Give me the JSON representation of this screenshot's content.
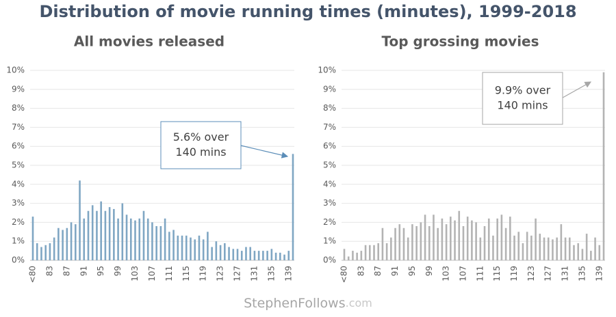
{
  "title": "Distribution of movie running times (minutes), 1999-2018",
  "watermark": {
    "name": "StephenFollows",
    "domain": ".com"
  },
  "chart_data": [
    {
      "type": "bar",
      "title": "All movies released",
      "color": "#7fa6c3",
      "categories": [
        "<80",
        null,
        null,
        null,
        "83",
        null,
        null,
        null,
        "87",
        null,
        null,
        null,
        "91",
        null,
        null,
        null,
        "95",
        null,
        null,
        null,
        "99",
        null,
        null,
        null,
        "103",
        null,
        null,
        null,
        "107",
        null,
        null,
        null,
        "111",
        null,
        null,
        null,
        "115",
        null,
        null,
        null,
        "119",
        null,
        null,
        null,
        "123",
        null,
        null,
        null,
        "127",
        null,
        null,
        null,
        "131",
        null,
        null,
        null,
        "135",
        null,
        null,
        null,
        "139",
        null
      ],
      "values": [
        2.3,
        0.9,
        0.7,
        0.8,
        0.9,
        1.2,
        1.7,
        1.6,
        1.7,
        2.0,
        1.9,
        4.2,
        2.2,
        2.6,
        2.9,
        2.6,
        3.1,
        2.6,
        2.8,
        2.7,
        2.2,
        3.0,
        2.4,
        2.2,
        2.1,
        2.2,
        2.6,
        2.2,
        2.0,
        1.8,
        1.8,
        2.2,
        1.5,
        1.6,
        1.3,
        1.3,
        1.3,
        1.2,
        1.1,
        1.3,
        1.1,
        1.5,
        0.7,
        1.0,
        0.8,
        0.9,
        0.7,
        0.6,
        0.6,
        0.5,
        0.7,
        0.7,
        0.5,
        0.5,
        0.5,
        0.5,
        0.6,
        0.4,
        0.4,
        0.3,
        0.5,
        5.6
      ],
      "ylim": [
        0,
        10
      ],
      "yticks": [
        {
          "value": 0,
          "label": "0%"
        },
        {
          "value": 1,
          "label": "1%"
        },
        {
          "value": 2,
          "label": "2%"
        },
        {
          "value": 3,
          "label": "3%"
        },
        {
          "value": 4,
          "label": "4%"
        },
        {
          "value": 5,
          "label": "5%"
        },
        {
          "value": 6,
          "label": "6%"
        },
        {
          "value": 7,
          "label": "7%"
        },
        {
          "value": 8,
          "label": "8%"
        },
        {
          "value": 9,
          "label": "9%"
        },
        {
          "value": 10,
          "label": "10%"
        }
      ],
      "grid": true,
      "annotation": [
        "5.6% over",
        "140 mins"
      ]
    },
    {
      "type": "bar",
      "title": "Top grossing movies",
      "color": "#b3b3b3",
      "categories": [
        "<80",
        null,
        null,
        null,
        "83",
        null,
        null,
        null,
        "87",
        null,
        null,
        null,
        "91",
        null,
        null,
        null,
        "95",
        null,
        null,
        null,
        "99",
        null,
        null,
        null,
        "103",
        null,
        null,
        null,
        "107",
        null,
        null,
        null,
        "111",
        null,
        null,
        null,
        "115",
        null,
        null,
        null,
        "119",
        null,
        null,
        null,
        "123",
        null,
        null,
        null,
        "127",
        null,
        null,
        null,
        "131",
        null,
        null,
        null,
        "135",
        null,
        null,
        null,
        "139",
        null
      ],
      "values": [
        0.6,
        0.2,
        0.5,
        0.4,
        0.5,
        0.8,
        0.8,
        0.8,
        0.9,
        1.7,
        0.9,
        1.2,
        1.7,
        1.9,
        1.7,
        1.2,
        1.9,
        1.8,
        2.0,
        2.4,
        1.8,
        2.4,
        1.7,
        2.2,
        1.9,
        2.3,
        2.1,
        2.6,
        1.8,
        2.3,
        2.1,
        2.0,
        1.2,
        1.8,
        2.2,
        1.3,
        2.2,
        2.4,
        1.7,
        2.3,
        1.3,
        1.5,
        0.9,
        1.5,
        1.3,
        2.2,
        1.4,
        1.2,
        1.2,
        1.1,
        1.2,
        1.9,
        1.2,
        1.2,
        0.8,
        0.9,
        0.6,
        1.4,
        0.5,
        1.2,
        0.8,
        9.9
      ],
      "ylim": [
        0,
        10
      ],
      "yticks": [
        {
          "value": 0,
          "label": "0%"
        },
        {
          "value": 1,
          "label": "1%"
        },
        {
          "value": 2,
          "label": "2%"
        },
        {
          "value": 3,
          "label": "3%"
        },
        {
          "value": 4,
          "label": "4%"
        },
        {
          "value": 5,
          "label": "5%"
        },
        {
          "value": 6,
          "label": "6%"
        },
        {
          "value": 7,
          "label": "7%"
        },
        {
          "value": 8,
          "label": "8%"
        },
        {
          "value": 9,
          "label": "9%"
        },
        {
          "value": 10,
          "label": "10%"
        }
      ],
      "grid": true,
      "annotation": [
        "9.9% over",
        "140 mins"
      ]
    }
  ]
}
